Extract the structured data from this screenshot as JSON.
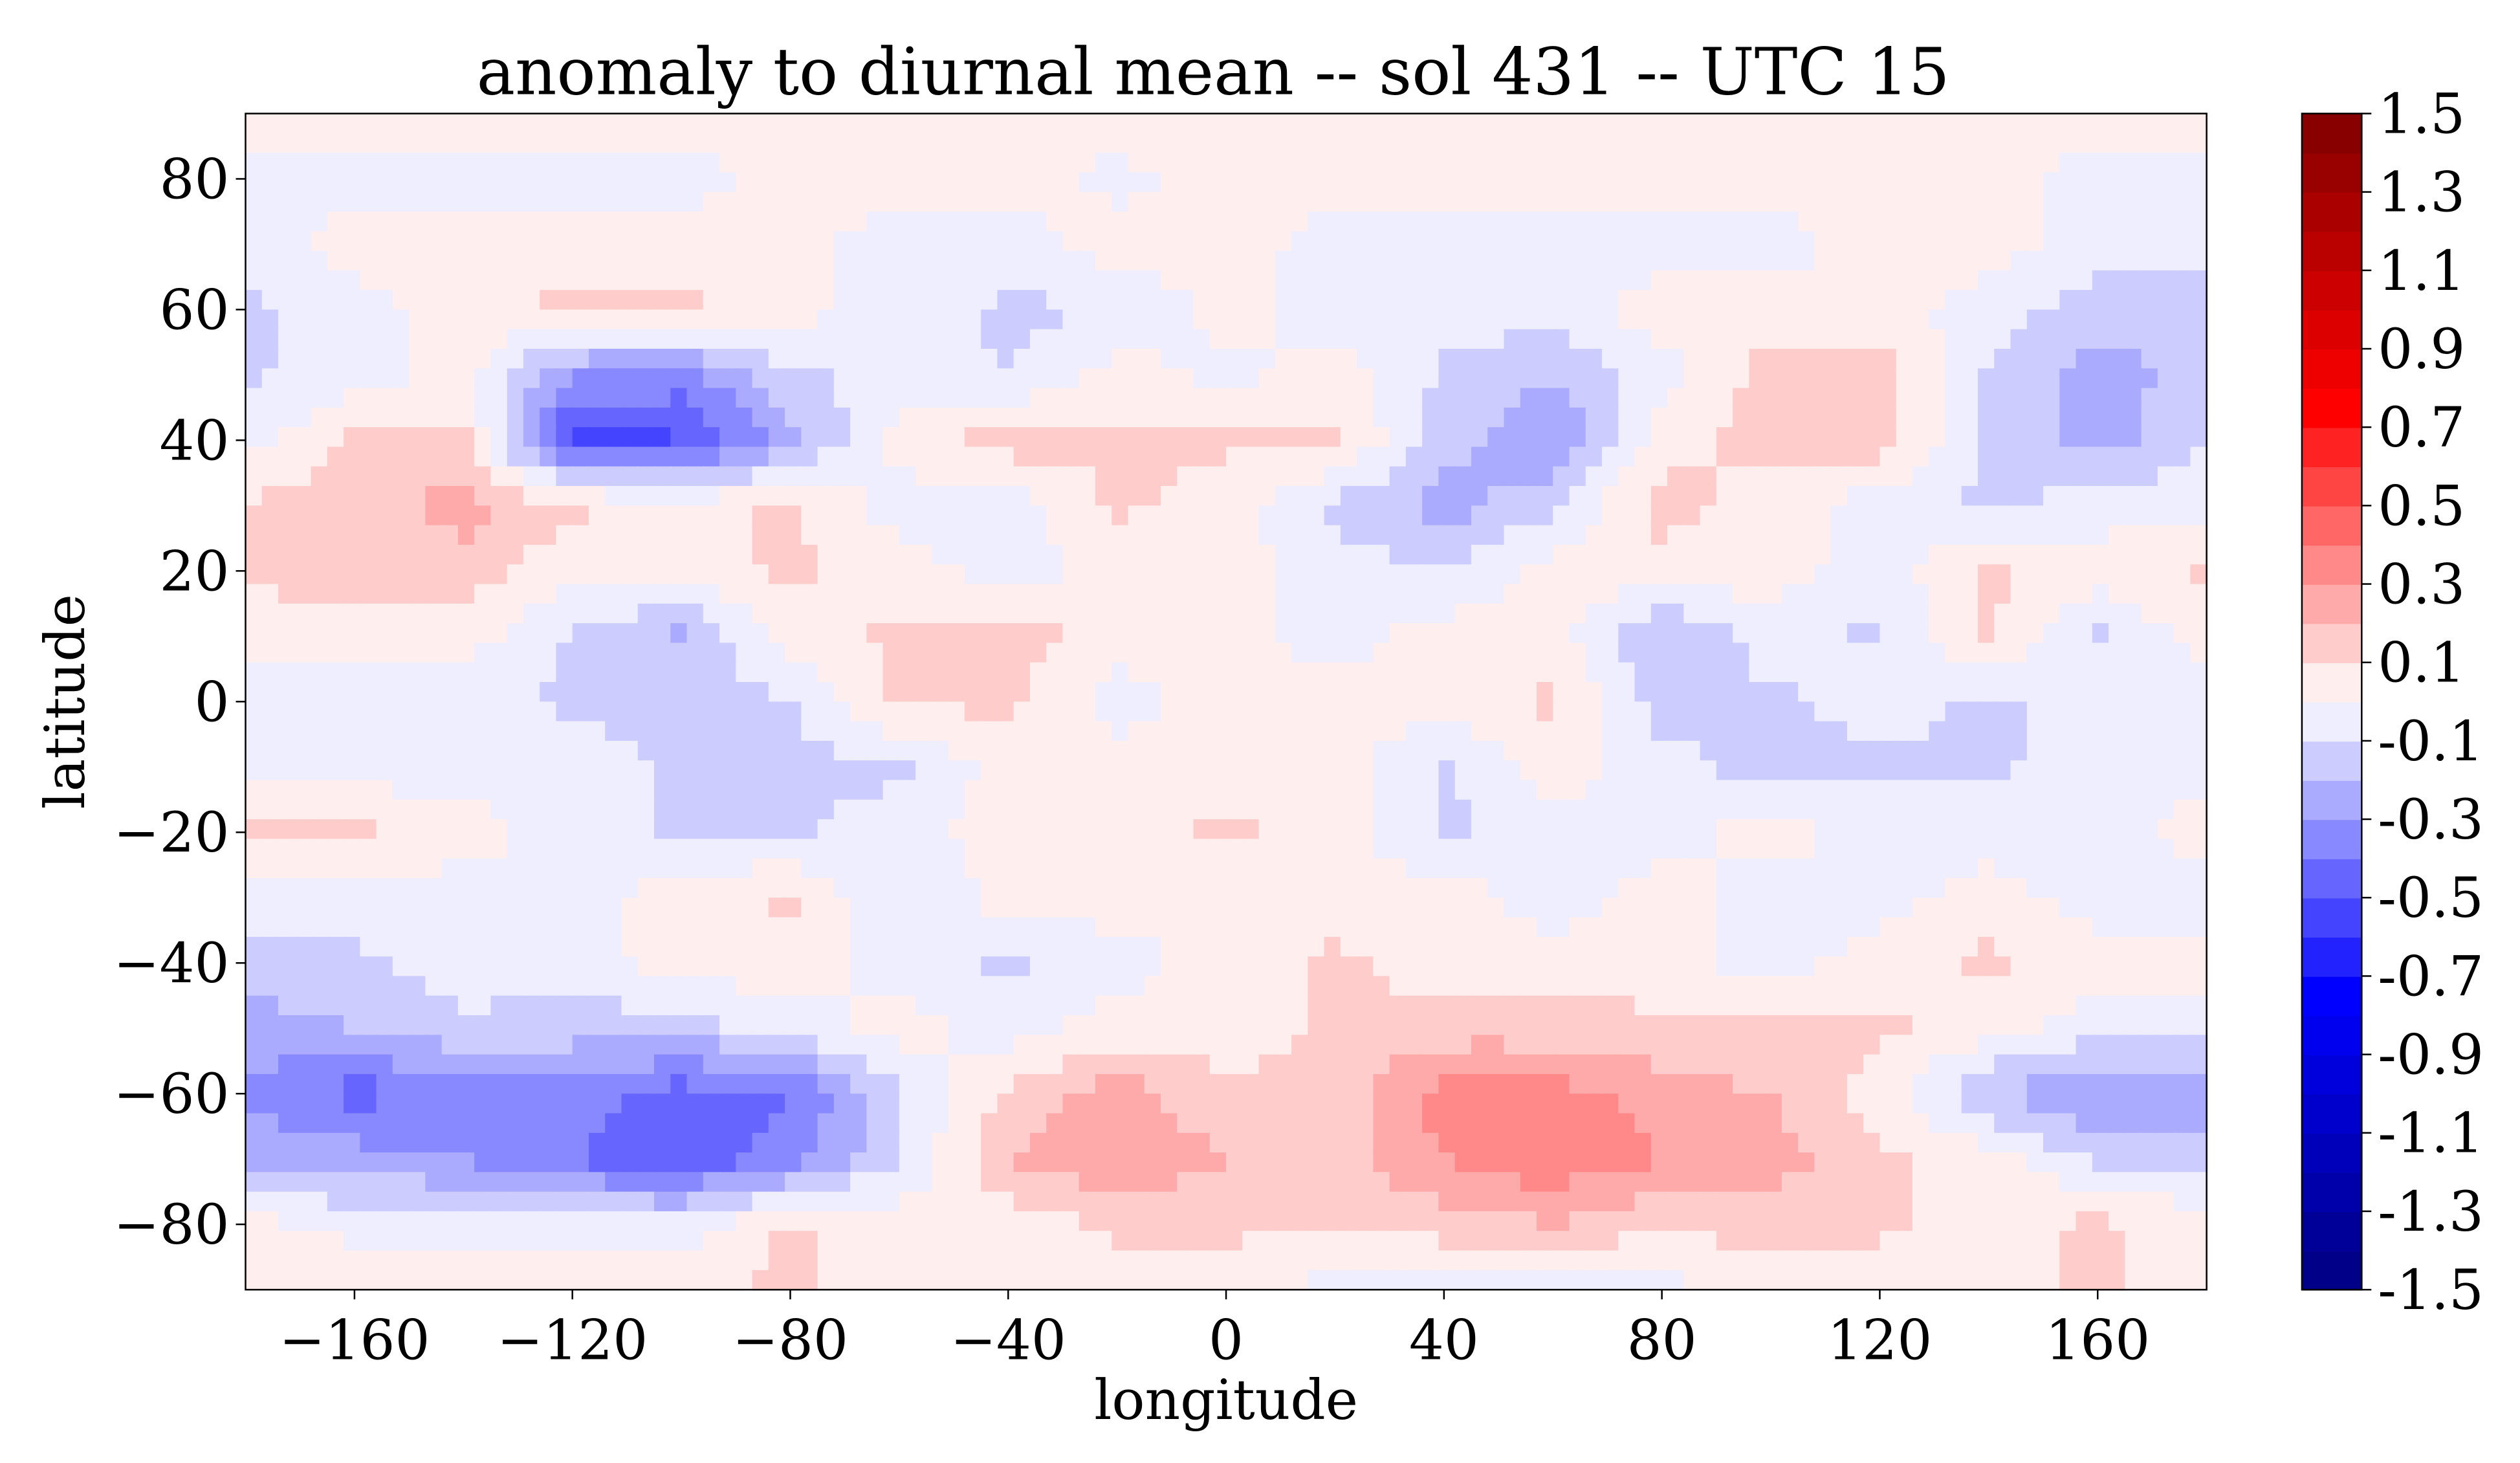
{
  "chart_data": {
    "type": "heatmap",
    "subtype": "filled-contour",
    "title": "anomaly to diurnal mean -- sol 431 -- UTC 15",
    "xlabel": "longitude",
    "ylabel": "latitude",
    "xlim": [
      -180,
      180
    ],
    "ylim": [
      -90,
      90
    ],
    "xticks": [
      -160,
      -120,
      -80,
      -40,
      0,
      40,
      80,
      120,
      160
    ],
    "xtick_labels": [
      "−160",
      "−120",
      "−80",
      "−40",
      "0",
      "40",
      "80",
      "120",
      "160"
    ],
    "yticks": [
      80,
      60,
      40,
      20,
      0,
      -20,
      -40,
      -60,
      -80
    ],
    "ytick_labels": [
      "80",
      "60",
      "40",
      "20",
      "0",
      "−20",
      "−40",
      "−60",
      "−80"
    ],
    "colorbar": {
      "range": [
        -1.5,
        1.5
      ],
      "level_step": 0.1,
      "ticks": [
        1.5,
        1.3,
        1.1,
        0.9,
        0.7,
        0.5,
        0.3,
        0.1,
        -0.1,
        -0.3,
        -0.5,
        -0.7,
        -0.9,
        -1.1,
        -1.3,
        -1.5
      ],
      "tick_labels": [
        "1.5",
        "1.3",
        "1.1",
        "0.9",
        "0.7",
        "0.5",
        "0.3",
        "0.1",
        "-0.1",
        "-0.3",
        "-0.5",
        "-0.7",
        "-0.9",
        "-1.1",
        "-1.3",
        "-1.5"
      ],
      "colormap": "seismic"
    },
    "grid": false,
    "lon": [
      -180,
      -160,
      -140,
      -120,
      -100,
      -80,
      -60,
      -40,
      -20,
      0,
      20,
      40,
      60,
      80,
      100,
      120,
      140,
      160,
      180
    ],
    "lat": [
      90,
      80,
      70,
      60,
      50,
      40,
      30,
      20,
      10,
      0,
      -10,
      -20,
      -30,
      -40,
      -50,
      -60,
      -70,
      -80,
      -90
    ],
    "values": [
      [
        0.05,
        0.05,
        0.05,
        0.05,
        0.05,
        0.05,
        0.05,
        0.05,
        0.05,
        0.05,
        0.05,
        0.05,
        0.05,
        0.05,
        0.05,
        0.05,
        0.05,
        0.05,
        0.05
      ],
      [
        -0.05,
        -0.05,
        -0.05,
        -0.05,
        -0.05,
        0.05,
        0.05,
        0.05,
        -0.03,
        0.05,
        0.05,
        0.05,
        0.05,
        0.05,
        0.05,
        0.05,
        0.05,
        -0.05,
        -0.05
      ],
      [
        -0.05,
        0.05,
        0.05,
        0.05,
        0.05,
        0.04,
        -0.05,
        -0.05,
        0.05,
        0.05,
        -0.05,
        -0.05,
        -0.05,
        -0.05,
        -0.05,
        0.05,
        0.05,
        -0.05,
        -0.05
      ],
      [
        -0.12,
        -0.05,
        0.05,
        0.13,
        0.12,
        0.04,
        -0.05,
        -0.12,
        -0.1,
        0.04,
        -0.05,
        -0.05,
        -0.05,
        0.05,
        0.05,
        0.05,
        -0.05,
        -0.15,
        -0.15
      ],
      [
        -0.12,
        -0.05,
        0.05,
        -0.3,
        -0.35,
        -0.12,
        -0.05,
        -0.1,
        0.05,
        -0.04,
        0.05,
        -0.12,
        -0.2,
        -0.05,
        0.15,
        0.15,
        -0.12,
        -0.25,
        -0.15
      ],
      [
        -0.05,
        0.12,
        0.12,
        -0.55,
        -0.5,
        -0.25,
        0.05,
        0.15,
        0.12,
        0.12,
        0.12,
        -0.15,
        -0.3,
        0.05,
        0.15,
        0.15,
        -0.12,
        -0.25,
        -0.1
      ],
      [
        0.12,
        0.15,
        0.25,
        0.12,
        0.05,
        0.12,
        -0.05,
        -0.05,
        0.12,
        0.05,
        -0.12,
        -0.25,
        -0.12,
        0.15,
        0.05,
        -0.05,
        -0.12,
        -0.05,
        -0.05
      ],
      [
        0.12,
        0.15,
        0.15,
        0.03,
        0.05,
        0.12,
        0.05,
        -0.05,
        0.05,
        0.05,
        -0.05,
        -0.1,
        0.05,
        0.05,
        0.05,
        -0.05,
        0.12,
        0.05,
        0.12
      ],
      [
        0.05,
        0.05,
        0.05,
        -0.12,
        -0.22,
        0.05,
        0.12,
        0.15,
        0.05,
        0.05,
        -0.05,
        0.05,
        0.05,
        -0.2,
        -0.05,
        -0.12,
        0.12,
        -0.12,
        0.05
      ],
      [
        -0.05,
        -0.05,
        -0.05,
        -0.12,
        -0.12,
        -0.12,
        0.12,
        0.12,
        -0.05,
        0.05,
        0.05,
        0.05,
        0.12,
        -0.15,
        -0.12,
        -0.05,
        -0.12,
        -0.05,
        -0.05
      ],
      [
        -0.05,
        -0.05,
        -0.05,
        -0.05,
        -0.12,
        -0.12,
        -0.12,
        0.05,
        0.05,
        0.05,
        0.05,
        -0.12,
        0.05,
        -0.05,
        -0.15,
        -0.12,
        -0.12,
        -0.05,
        -0.05
      ],
      [
        0.12,
        0.12,
        0.05,
        -0.05,
        -0.12,
        -0.12,
        -0.05,
        0.05,
        0.05,
        0.12,
        0.05,
        -0.12,
        -0.05,
        -0.05,
        0.05,
        -0.05,
        -0.05,
        -0.05,
        0.05
      ],
      [
        -0.05,
        -0.05,
        -0.05,
        -0.05,
        0.05,
        0.12,
        -0.12,
        0.05,
        0.05,
        0.05,
        0.05,
        0.05,
        -0.05,
        0.05,
        -0.05,
        -0.05,
        0.05,
        -0.05,
        -0.05
      ],
      [
        -0.15,
        -0.12,
        -0.05,
        -0.05,
        0.05,
        0.05,
        -0.05,
        -0.12,
        -0.05,
        0.05,
        0.12,
        0.05,
        0.05,
        0.05,
        -0.05,
        0.05,
        0.12,
        0.05,
        0.05
      ],
      [
        -0.25,
        -0.2,
        -0.12,
        -0.15,
        -0.15,
        -0.05,
        0.05,
        -0.05,
        0.05,
        0.05,
        0.12,
        0.15,
        0.15,
        0.12,
        0.12,
        0.12,
        0.05,
        -0.05,
        -0.05
      ],
      [
        -0.3,
        -0.45,
        -0.35,
        -0.35,
        -0.45,
        -0.4,
        -0.12,
        0.12,
        0.25,
        0.12,
        0.12,
        0.35,
        0.35,
        0.25,
        0.2,
        0.05,
        -0.2,
        -0.3,
        -0.3
      ],
      [
        -0.25,
        -0.25,
        -0.3,
        -0.4,
        -0.5,
        -0.35,
        -0.1,
        0.2,
        0.3,
        0.2,
        0.15,
        0.3,
        0.38,
        0.3,
        0.25,
        0.12,
        0.05,
        -0.12,
        -0.15
      ],
      [
        0.05,
        -0.05,
        -0.05,
        -0.05,
        -0.05,
        0.12,
        0.05,
        0.05,
        0.12,
        0.12,
        0.12,
        0.15,
        0.2,
        0.12,
        0.15,
        0.12,
        0.05,
        0.12,
        0.05
      ],
      [
        0.05,
        0.12,
        0.12,
        0.12,
        0.08,
        0.12,
        0.05,
        0.05,
        0.05,
        0.05,
        -0.05,
        -0.05,
        -0.05,
        -0.05,
        0.05,
        0.05,
        0.05,
        0.12,
        0.05
      ]
    ]
  }
}
